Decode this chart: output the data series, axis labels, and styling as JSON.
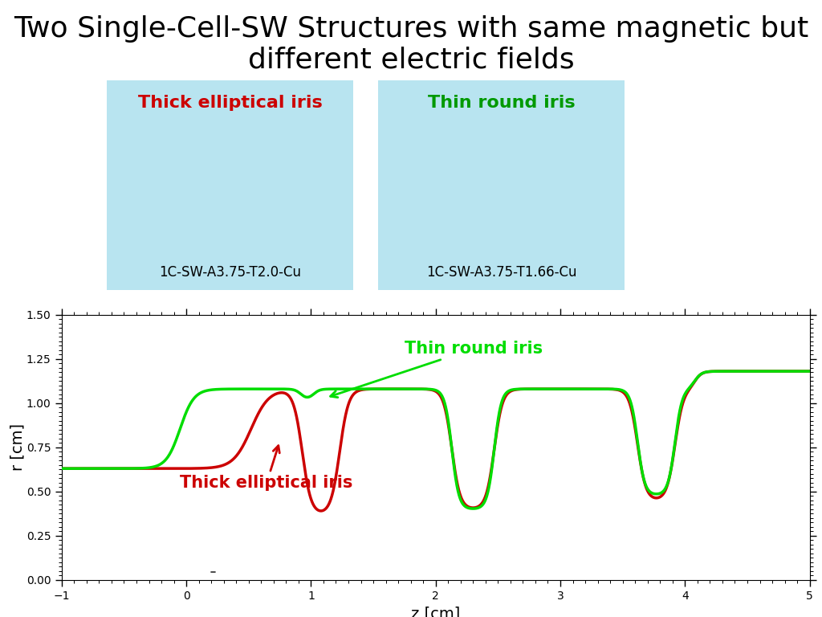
{
  "title_line1": "Two Single-Cell-SW Structures with same magnetic but",
  "title_line2": "different electric fields",
  "title_fontsize": 26,
  "box1_label": "Thick elliptical iris",
  "box1_color": "#cc0000",
  "box1_sublabel": "1C-SW-A3.75-T2.0-Cu",
  "box2_label": "Thin round iris",
  "box2_color": "#009900",
  "box2_sublabel": "1C-SW-A3.75-T1.66-Cu",
  "box_bg": "#b8e4f0",
  "xlabel": "z [cm]",
  "ylabel": "r [cm]",
  "xlim": [
    -1,
    5
  ],
  "ylim": [
    0.0,
    1.5
  ],
  "yticks": [
    0.0,
    0.25,
    0.5,
    0.75,
    1.0,
    1.25,
    1.5
  ],
  "xticks": [
    -1,
    0,
    1,
    2,
    3,
    4,
    5
  ],
  "green_label": "Thin round iris",
  "red_label": "Thick elliptical iris",
  "green_color": "#00dd00",
  "red_color": "#cc0000",
  "line_lw": 2.5,
  "annotation_fontsize": 15
}
